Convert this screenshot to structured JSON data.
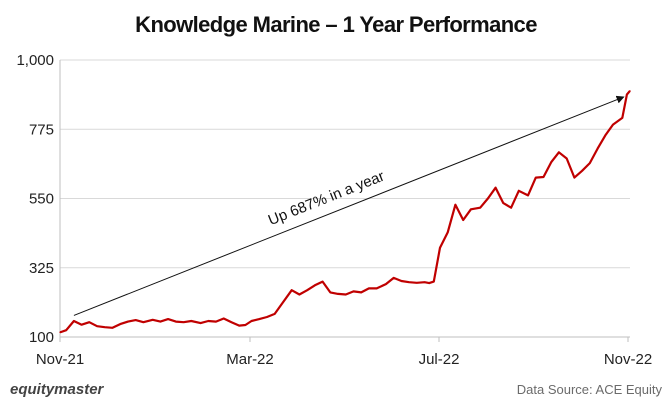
{
  "chart_data": {
    "type": "line",
    "title": "Knowledge Marine – 1 Year Performance",
    "xlabel": "",
    "ylabel": "",
    "ylim": [
      100,
      1000
    ],
    "y_ticks": [
      "1,000",
      "775",
      "550",
      "325",
      "100"
    ],
    "y_tick_values": [
      1000,
      775,
      550,
      325,
      100
    ],
    "x_ticks": [
      "Nov-21",
      "Mar-22",
      "Jul-22",
      "Nov-22"
    ],
    "grid": true,
    "line_color": "#C00000",
    "series": [
      {
        "x": [
          "2021-11-01",
          "2021-11-05",
          "2021-11-10",
          "2021-11-15",
          "2021-11-20",
          "2021-11-25",
          "2021-11-30",
          "2021-12-05",
          "2021-12-10",
          "2021-12-15",
          "2021-12-20",
          "2021-12-25",
          "2021-12-31",
          "2022-01-05",
          "2022-01-10",
          "2022-01-15",
          "2022-01-20",
          "2022-01-25",
          "2022-01-31",
          "2022-02-05",
          "2022-02-10",
          "2022-02-15",
          "2022-02-20",
          "2022-02-25",
          "2022-03-01",
          "2022-03-05",
          "2022-03-10",
          "2022-03-15",
          "2022-03-20",
          "2022-03-25",
          "2022-03-31",
          "2022-04-05",
          "2022-04-10",
          "2022-04-15",
          "2022-04-20",
          "2022-04-25",
          "2022-04-30",
          "2022-05-05",
          "2022-05-10",
          "2022-05-15",
          "2022-05-20",
          "2022-05-25",
          "2022-05-31",
          "2022-06-05",
          "2022-06-10",
          "2022-06-15",
          "2022-06-20",
          "2022-06-25",
          "2022-06-28",
          "2022-07-01",
          "2022-07-05",
          "2022-07-10",
          "2022-07-15",
          "2022-07-20",
          "2022-07-25",
          "2022-07-31",
          "2022-08-05",
          "2022-08-10",
          "2022-08-15",
          "2022-08-20",
          "2022-08-25",
          "2022-08-31",
          "2022-09-05",
          "2022-09-10",
          "2022-09-15",
          "2022-09-20",
          "2022-09-25",
          "2022-09-30",
          "2022-10-05",
          "2022-10-10",
          "2022-10-15",
          "2022-10-20",
          "2022-10-25",
          "2022-10-31",
          "2022-11-03",
          "2022-11-05"
        ],
        "values": [
          115,
          122,
          152,
          140,
          148,
          135,
          132,
          130,
          142,
          150,
          155,
          148,
          156,
          150,
          158,
          150,
          148,
          152,
          145,
          152,
          150,
          160,
          148,
          137,
          139,
          152,
          158,
          165,
          175,
          210,
          252,
          238,
          252,
          268,
          280,
          245,
          240,
          238,
          248,
          245,
          258,
          258,
          272,
          292,
          282,
          278,
          276,
          278,
          275,
          280,
          390,
          440,
          530,
          480,
          515,
          520,
          550,
          585,
          535,
          520,
          575,
          560,
          618,
          620,
          668,
          700,
          680,
          618,
          640,
          665,
          712,
          755,
          790,
          812,
          888,
          900
        ]
      }
    ],
    "annotations": [
      {
        "text": "Up 687% in a year",
        "from": [
          "2021-11-10",
          170
        ],
        "to": [
          "2022-11-01",
          880
        ]
      }
    ]
  },
  "footer": {
    "brand": "equitymaster",
    "source": "Data Source: ACE Equity"
  }
}
